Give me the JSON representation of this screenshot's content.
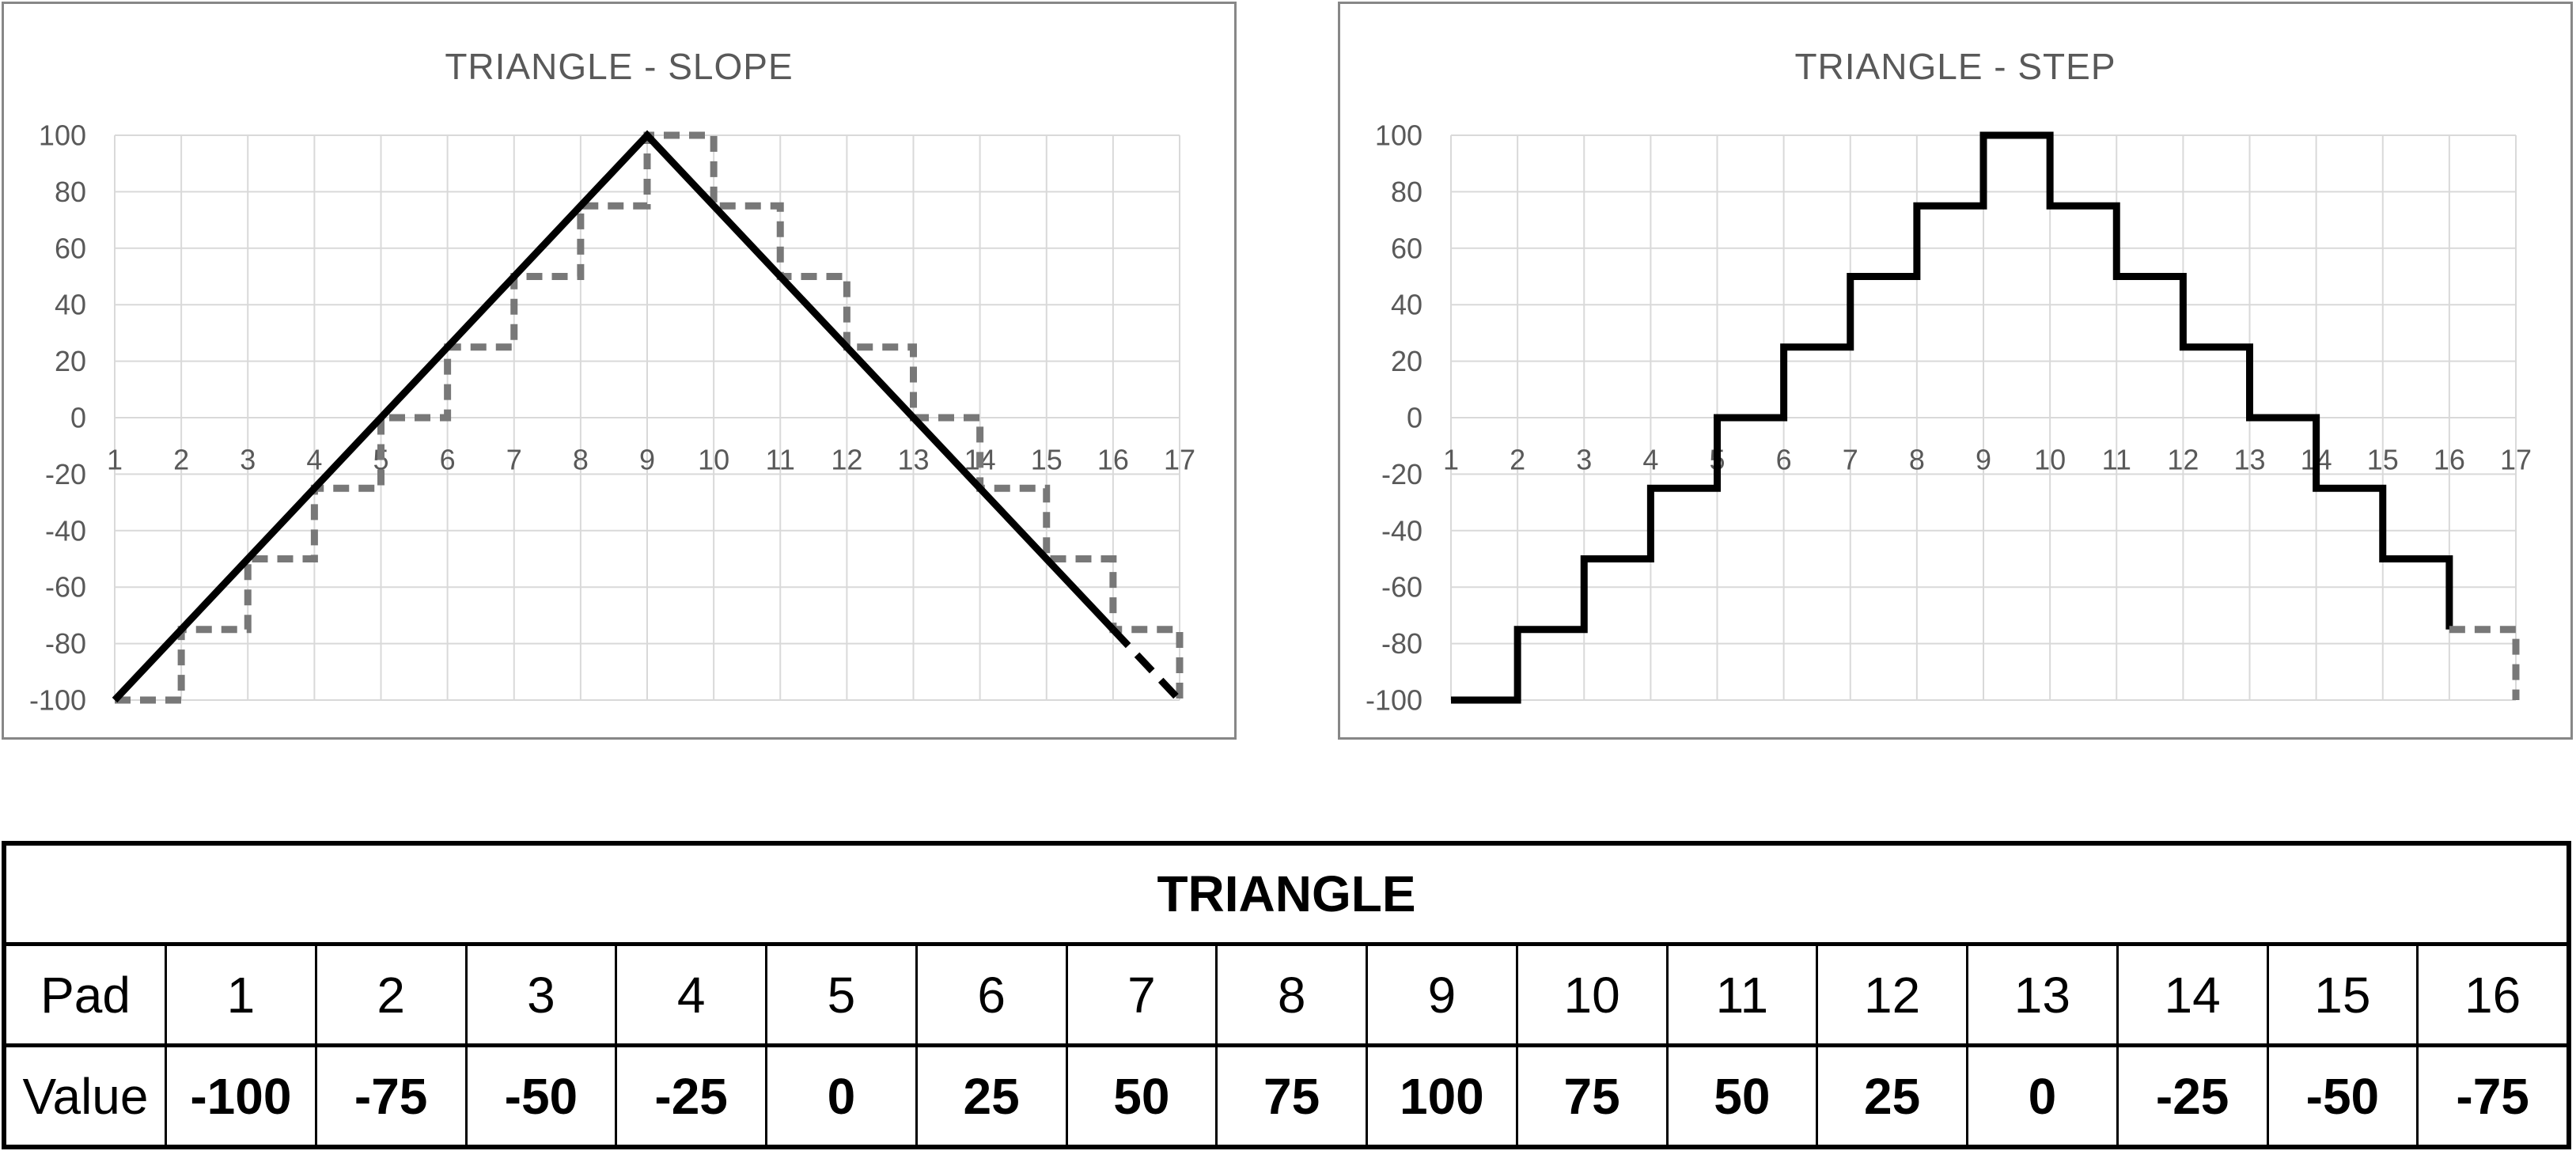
{
  "colors": {
    "panel_border": "#878787",
    "grid_line": "#D9D9D9",
    "tick_label": "#595959",
    "chart_title": "#595959",
    "table_border": "#000000",
    "series_black": "#000000",
    "series_gray": "#787878"
  },
  "strokes": {
    "black-solid": {
      "color": "#000000",
      "width": 9,
      "dash": ""
    },
    "black-dashed": {
      "color": "#000000",
      "width": 9,
      "dash": "28 16"
    },
    "gray-dashed": {
      "color": "#787878",
      "width": 9,
      "dash": "20 12"
    }
  },
  "chart_data": [
    {
      "type": "line",
      "title": "TRIANGLE - SLOPE",
      "xlim": [
        1,
        17
      ],
      "ylim": [
        -100,
        100
      ],
      "grid": true,
      "legend": "none",
      "x_ticks": [
        1,
        2,
        3,
        4,
        5,
        6,
        7,
        8,
        9,
        10,
        11,
        12,
        13,
        14,
        15,
        16,
        17
      ],
      "y_ticks": [
        100,
        80,
        60,
        40,
        20,
        0,
        -20,
        -40,
        -60,
        -80,
        -100
      ],
      "series": [
        {
          "name": "triangle-step-preview-dashed-gray",
          "mode": "step-after",
          "stroke": "gray-dashed",
          "x": [
            1,
            2,
            3,
            4,
            5,
            6,
            7,
            8,
            9,
            10,
            11,
            12,
            13,
            14,
            15,
            16,
            17
          ],
          "y": [
            -100,
            -75,
            -50,
            -25,
            0,
            25,
            50,
            75,
            100,
            75,
            50,
            25,
            0,
            -25,
            -50,
            -75,
            -100
          ]
        },
        {
          "name": "triangle-slope-solid-black",
          "mode": "linear",
          "stroke": "black-solid",
          "x": [
            1,
            9,
            16
          ],
          "y": [
            -100,
            100,
            -75
          ]
        },
        {
          "name": "triangle-slope-wrap-dashed-black",
          "mode": "linear",
          "stroke": "black-dashed",
          "x": [
            16,
            17
          ],
          "y": [
            -75,
            -100
          ]
        }
      ]
    },
    {
      "type": "line",
      "title": "TRIANGLE - STEP",
      "xlim": [
        1,
        17
      ],
      "ylim": [
        -100,
        100
      ],
      "grid": true,
      "legend": "none",
      "x_ticks": [
        1,
        2,
        3,
        4,
        5,
        6,
        7,
        8,
        9,
        10,
        11,
        12,
        13,
        14,
        15,
        16,
        17
      ],
      "y_ticks": [
        100,
        80,
        60,
        40,
        20,
        0,
        -20,
        -40,
        -60,
        -80,
        -100
      ],
      "series": [
        {
          "name": "triangle-step-solid-black",
          "mode": "step-after",
          "stroke": "black-solid",
          "x": [
            1,
            2,
            3,
            4,
            5,
            6,
            7,
            8,
            9,
            10,
            11,
            12,
            13,
            14,
            15,
            16
          ],
          "y": [
            -100,
            -75,
            -50,
            -25,
            0,
            25,
            50,
            75,
            100,
            75,
            50,
            25,
            0,
            -25,
            -50,
            -75
          ]
        },
        {
          "name": "triangle-step-wrap-dashed-gray",
          "mode": "linear",
          "stroke": "gray-dashed",
          "x": [
            16,
            17,
            17
          ],
          "y": [
            -75,
            -75,
            -100
          ]
        }
      ]
    }
  ],
  "table": {
    "title": "TRIANGLE",
    "row_headers": [
      "Pad",
      "Value"
    ],
    "pads": [
      "1",
      "2",
      "3",
      "4",
      "5",
      "6",
      "7",
      "8",
      "9",
      "10",
      "11",
      "12",
      "13",
      "14",
      "15",
      "16"
    ],
    "values": [
      "-100",
      "-75",
      "-50",
      "-25",
      "0",
      "25",
      "50",
      "75",
      "100",
      "75",
      "50",
      "25",
      "0",
      "-25",
      "-50",
      "-75"
    ]
  }
}
